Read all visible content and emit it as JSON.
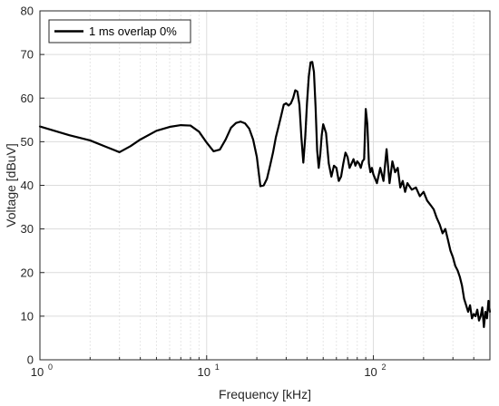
{
  "chart_data": {
    "type": "line",
    "title": "",
    "xlabel": "Frequency [kHz]",
    "ylabel": "Voltage [dBuV]",
    "xscale": "log",
    "xlim": [
      1,
      500
    ],
    "ylim": [
      0,
      80
    ],
    "x_ticks": [
      1,
      10,
      100
    ],
    "x_tick_labels": [
      "10",
      "10",
      "10"
    ],
    "x_tick_exponents": [
      "0",
      "1",
      "2"
    ],
    "y_ticks": [
      0,
      10,
      20,
      30,
      40,
      50,
      60,
      70,
      80
    ],
    "y_tick_labels": [
      "0",
      "10",
      "20",
      "30",
      "40",
      "50",
      "60",
      "70",
      "80"
    ],
    "grid": true,
    "legend": {
      "position": "top-left",
      "entries": [
        "1 ms overlap 0%"
      ]
    },
    "series": [
      {
        "name": "1 ms overlap 0%",
        "color": "#000000",
        "x": [
          1,
          1.5,
          2,
          2.5,
          3,
          3.5,
          4,
          5,
          6,
          7,
          8,
          9,
          10,
          11,
          12,
          13,
          14,
          15,
          16,
          17,
          18,
          19,
          20,
          21,
          22,
          23,
          24,
          25,
          26,
          27,
          28,
          29,
          30,
          31,
          32,
          33,
          34,
          35,
          36,
          37,
          38,
          39,
          40,
          41,
          42,
          43,
          44,
          45,
          46,
          47,
          48,
          49,
          50,
          52,
          54,
          56,
          58,
          60,
          62,
          64,
          66,
          68,
          70,
          72,
          74,
          76,
          78,
          80,
          82,
          84,
          86,
          88,
          90,
          92,
          94,
          96,
          98,
          100,
          105,
          110,
          115,
          120,
          125,
          130,
          135,
          140,
          145,
          150,
          155,
          160,
          170,
          180,
          190,
          200,
          210,
          220,
          230,
          240,
          250,
          260,
          270,
          280,
          290,
          300,
          310,
          320,
          330,
          340,
          350,
          360,
          370,
          380,
          390,
          400,
          410,
          420,
          430,
          440,
          450,
          460,
          470,
          480,
          490,
          500
        ],
        "y": [
          53.5,
          51.5,
          50.3,
          48.8,
          47.6,
          49.0,
          50.5,
          52.5,
          53.4,
          53.8,
          53.7,
          52.3,
          49.8,
          47.8,
          48.2,
          50.5,
          53.2,
          54.3,
          54.6,
          54.2,
          53.0,
          50.5,
          46.5,
          39.8,
          40.0,
          41.5,
          44.5,
          47.5,
          51.0,
          53.5,
          56.0,
          58.5,
          58.8,
          58.3,
          58.8,
          60.0,
          61.8,
          61.5,
          58.5,
          51.0,
          45.2,
          51.0,
          59.0,
          65.0,
          68.2,
          68.3,
          66.0,
          58.0,
          48.0,
          44.0,
          47.0,
          51.5,
          54.0,
          52.0,
          45.0,
          42.0,
          44.5,
          44.0,
          41.0,
          42.0,
          45.0,
          47.5,
          46.5,
          44.0,
          45.0,
          46.0,
          44.5,
          45.5,
          45.0,
          44.0,
          45.5,
          46.0,
          57.5,
          54.0,
          45.0,
          43.0,
          44.0,
          42.5,
          40.5,
          44.0,
          41.0,
          48.3,
          40.5,
          45.5,
          43.0,
          44.0,
          39.5,
          41.0,
          38.5,
          40.5,
          39.0,
          39.5,
          37.5,
          38.5,
          36.5,
          35.5,
          34.5,
          32.5,
          31.0,
          29.0,
          30.0,
          27.5,
          25.0,
          23.5,
          21.5,
          20.5,
          19.0,
          17.0,
          14.0,
          12.5,
          11.0,
          12.5,
          9.5,
          10.5,
          10.0,
          11.5,
          9.0,
          10.0,
          12.0,
          7.5,
          11.0,
          9.5,
          13.5,
          11.0
        ]
      }
    ]
  }
}
